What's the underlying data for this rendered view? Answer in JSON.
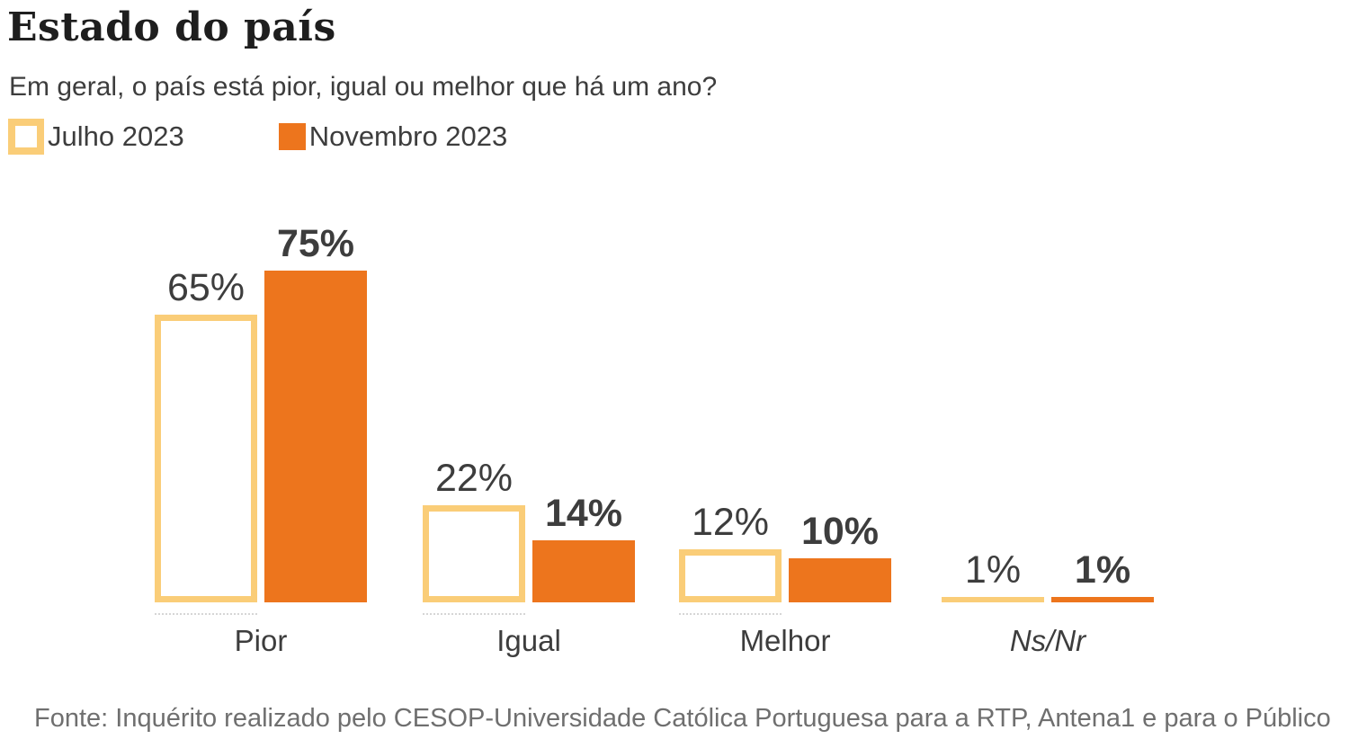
{
  "header": {
    "title": "Estado do país",
    "subtitle": "Em geral, o país está pior, igual ou melhor que há um ano?"
  },
  "colors": {
    "outline": "#FACD78",
    "solid": "#ED751D",
    "title": "#1e1e1e",
    "text": "#3d3d3d",
    "footer": "#6f6f6f",
    "background": "#ffffff"
  },
  "chart_data": {
    "type": "bar",
    "categories": [
      "Pior",
      "Igual",
      "Melhor",
      "Ns/Nr"
    ],
    "series": [
      {
        "name": "Julho 2023",
        "style": "outlined",
        "color": "#FACD78",
        "values": [
          65,
          22,
          12,
          1
        ]
      },
      {
        "name": "Novembro 2023",
        "style": "solid",
        "color": "#ED751D",
        "values": [
          75,
          14,
          10,
          1
        ]
      }
    ],
    "value_suffix": "%",
    "ylim": [
      0,
      80
    ],
    "grid": false,
    "axis_labels_visible": false,
    "legend_position": "top",
    "value_labels": "above-bars",
    "italic_categories": [
      "Ns/Nr"
    ]
  },
  "footer": {
    "source": "Fonte: Inquérito realizado pelo CESOP-Universidade Católica Portuguesa para a RTP, Antena1 e para o Público"
  }
}
